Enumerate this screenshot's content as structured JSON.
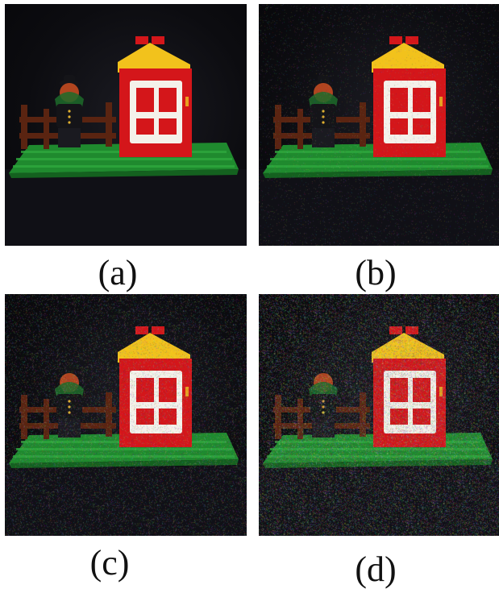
{
  "figure": {
    "panels": [
      {
        "id": "a",
        "caption": "(a)",
        "noise_level": 0.0
      },
      {
        "id": "b",
        "caption": "(b)",
        "noise_level": 0.15
      },
      {
        "id": "c",
        "caption": "(c)",
        "noise_level": 0.45
      },
      {
        "id": "d",
        "caption": "(d)",
        "noise_level": 0.8
      }
    ],
    "colors": {
      "background": "#0c0c10",
      "baseplate": "#1f8a2e",
      "house_red": "#d4161a",
      "roof_yellow": "#f2c21c",
      "window_white": "#f4f1ea",
      "fence_brown": "#5a2411",
      "figure_black": "#141418"
    }
  }
}
